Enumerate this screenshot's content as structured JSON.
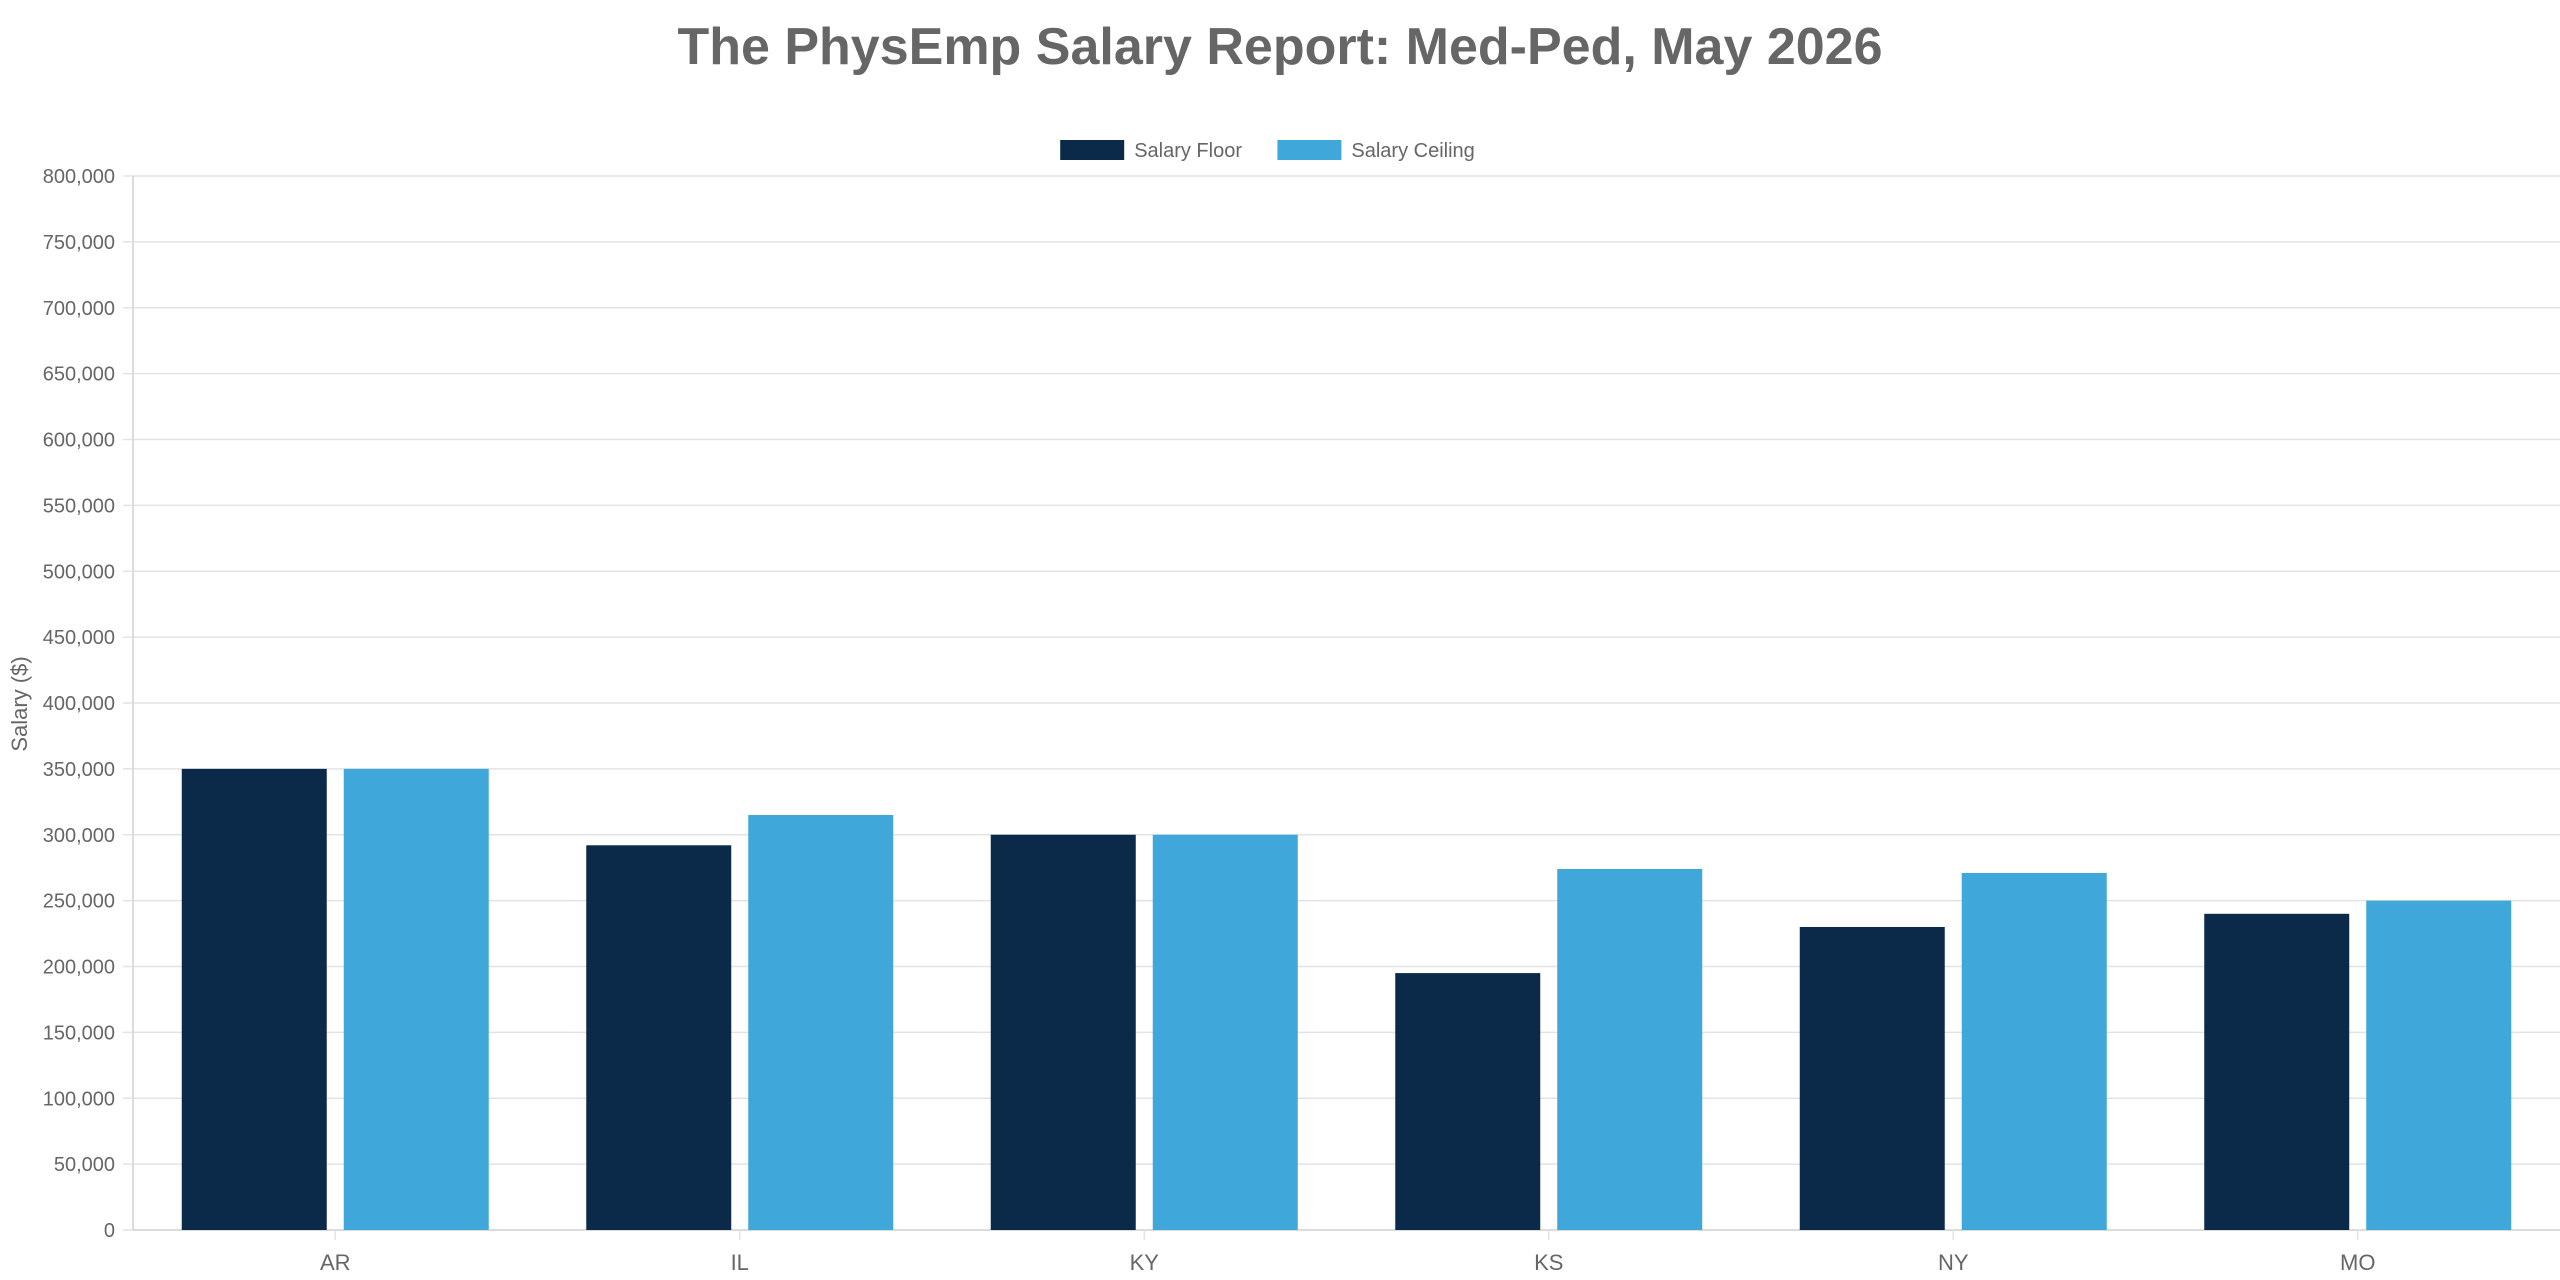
{
  "chart_data": {
    "type": "bar",
    "title": "The PhysEmp Salary Report: Med-Ped, May 2026",
    "xlabel": "",
    "ylabel": "Salary ($)",
    "categories": [
      "AR",
      "IL",
      "KY",
      "KS",
      "NY",
      "MO"
    ],
    "series": [
      {
        "name": "Salary Floor",
        "color": "#0b2a4a",
        "values": [
          350000,
          292000,
          300000,
          195000,
          230000,
          240000
        ]
      },
      {
        "name": "Salary Ceiling",
        "color": "#3fa7d9",
        "values": [
          350000,
          315000,
          300000,
          274000,
          271000,
          250000
        ]
      }
    ],
    "ylim": [
      0,
      800000
    ],
    "y_ticks": [
      0,
      50000,
      100000,
      150000,
      200000,
      250000,
      300000,
      350000,
      400000,
      450000,
      500000,
      550000,
      600000,
      650000,
      700000,
      750000,
      800000
    ],
    "y_tick_labels": [
      "0",
      "50,000",
      "100,000",
      "150,000",
      "200,000",
      "250,000",
      "300,000",
      "350,000",
      "400,000",
      "450,000",
      "500,000",
      "550,000",
      "600,000",
      "650,000",
      "700,000",
      "750,000",
      "800,000"
    ],
    "grid": true,
    "legend_position": "top-center"
  }
}
